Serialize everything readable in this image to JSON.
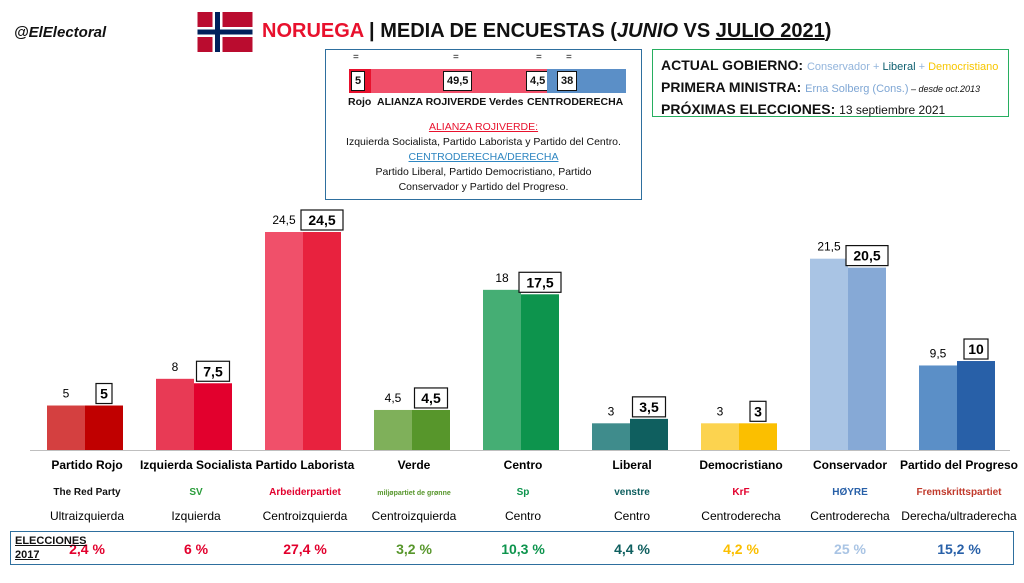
{
  "handle": "@ElElectoral",
  "title": {
    "country": "NORUEGA",
    "separator": " | MEDIA DE ENCUESTAS (",
    "month1": "JUNIO",
    "vs": " VS ",
    "month2": "JULIO 2021",
    "close": ")"
  },
  "coalition": {
    "segments": [
      {
        "label": "Rojo",
        "value": "5",
        "change": "=",
        "color": "#e8112d"
      },
      {
        "label": "ALIANZA ROJIVERDE",
        "value": "49,5",
        "change": "=",
        "color": "#f0506a"
      },
      {
        "label": "Verdes",
        "value": "4,5",
        "change": "=",
        "color": "#f0506a"
      },
      {
        "label": "CENTRODERECHA",
        "value": "38",
        "change": "=",
        "color": "#5b8fc7"
      }
    ],
    "red_heading": "ALIANZA ROJIVERDE:",
    "red_text": "Izquierda Socialista, Partido Laborista y Partido del Centro.",
    "blue_heading": "CENTRODERECHA/DERECHA",
    "blue_text_1": "Partido Liberal, Partido Democristiano, Partido",
    "blue_text_2": "Conservador y Partido del Progreso."
  },
  "government": {
    "gov_label": "ACTUAL GOBIERNO:",
    "gov_p1": "Conservador",
    "plus1": " + ",
    "gov_p2": "Liberal",
    "plus2": " + ",
    "gov_p3": "Democristiano",
    "pm_label": "PRIMERA MINISTRA:",
    "pm_name": "Erna Solberg (Cons.)",
    "pm_since": " – desde oct.2013",
    "elections_label": "PRÓXIMAS ELECCIONES:",
    "elections_date": "13 septiembre 2021"
  },
  "chart_data": {
    "type": "bar",
    "ylim": [
      0,
      27
    ],
    "categories": [
      "Partido Rojo",
      "Izquierda Socialista",
      "Partido Laborista",
      "Verde",
      "Centro",
      "Liberal",
      "Democristiano",
      "Conservador",
      "Partido del Progreso"
    ],
    "series": [
      {
        "name": "",
        "values": [
          5,
          8,
          24.5,
          4.5,
          18,
          3,
          3,
          21.5,
          9.5
        ],
        "labels": [
          "5",
          "8",
          "24,5",
          "4,5",
          "18",
          "3",
          "3",
          "21,5",
          "9,5"
        ]
      },
      {
        "name": "",
        "values": [
          5,
          7.5,
          24.5,
          4.5,
          17.5,
          3.5,
          3,
          20.5,
          10
        ],
        "labels": [
          "5",
          "7,5",
          "24,5",
          "4,5",
          "17,5",
          "3,5",
          "3",
          "20,5",
          "10"
        ]
      }
    ],
    "ideology": [
      "Ultraizquierda",
      "Izquierda",
      "Centroizquierda",
      "Centroizquierda",
      "Centro",
      "Centro",
      "Centroderecha",
      "Centroderecha",
      "Derecha/ultraderecha"
    ],
    "logos": [
      "The Red Party",
      "SV",
      "Arbeiderpartiet",
      "miljøpartiet de grønne",
      "Sp",
      "venstre",
      "KrF",
      "HØYRE",
      "Fremskrittspartiet"
    ],
    "colors_june": [
      "#d44040",
      "#e83a55",
      "#f0506a",
      "#7fb05a",
      "#45ae74",
      "#3f8c8c",
      "#fcd34f",
      "#a9c4e4",
      "#5b8fc7"
    ],
    "colors_july": [
      "#c00000",
      "#e2002d",
      "#e8223e",
      "#57962b",
      "#0d944d",
      "#0f5f5f",
      "#fbbf00",
      "#86a9d6",
      "#2860a8"
    ],
    "elections_2017_label": [
      "ELECCIONES",
      "2017"
    ],
    "elections_2017": [
      "2,4 %",
      "6 %",
      "27,4 %",
      "3,2 %",
      "10,3 %",
      "4,4 %",
      "4,2 %",
      "25 %",
      "15,2 %"
    ],
    "elections_colors": [
      "#e2002d",
      "#e2002d",
      "#e2002d",
      "#57962b",
      "#0d944d",
      "#0f5f5f",
      "#fbbf00",
      "#a9c4e4",
      "#2860a8"
    ],
    "grid": false
  }
}
